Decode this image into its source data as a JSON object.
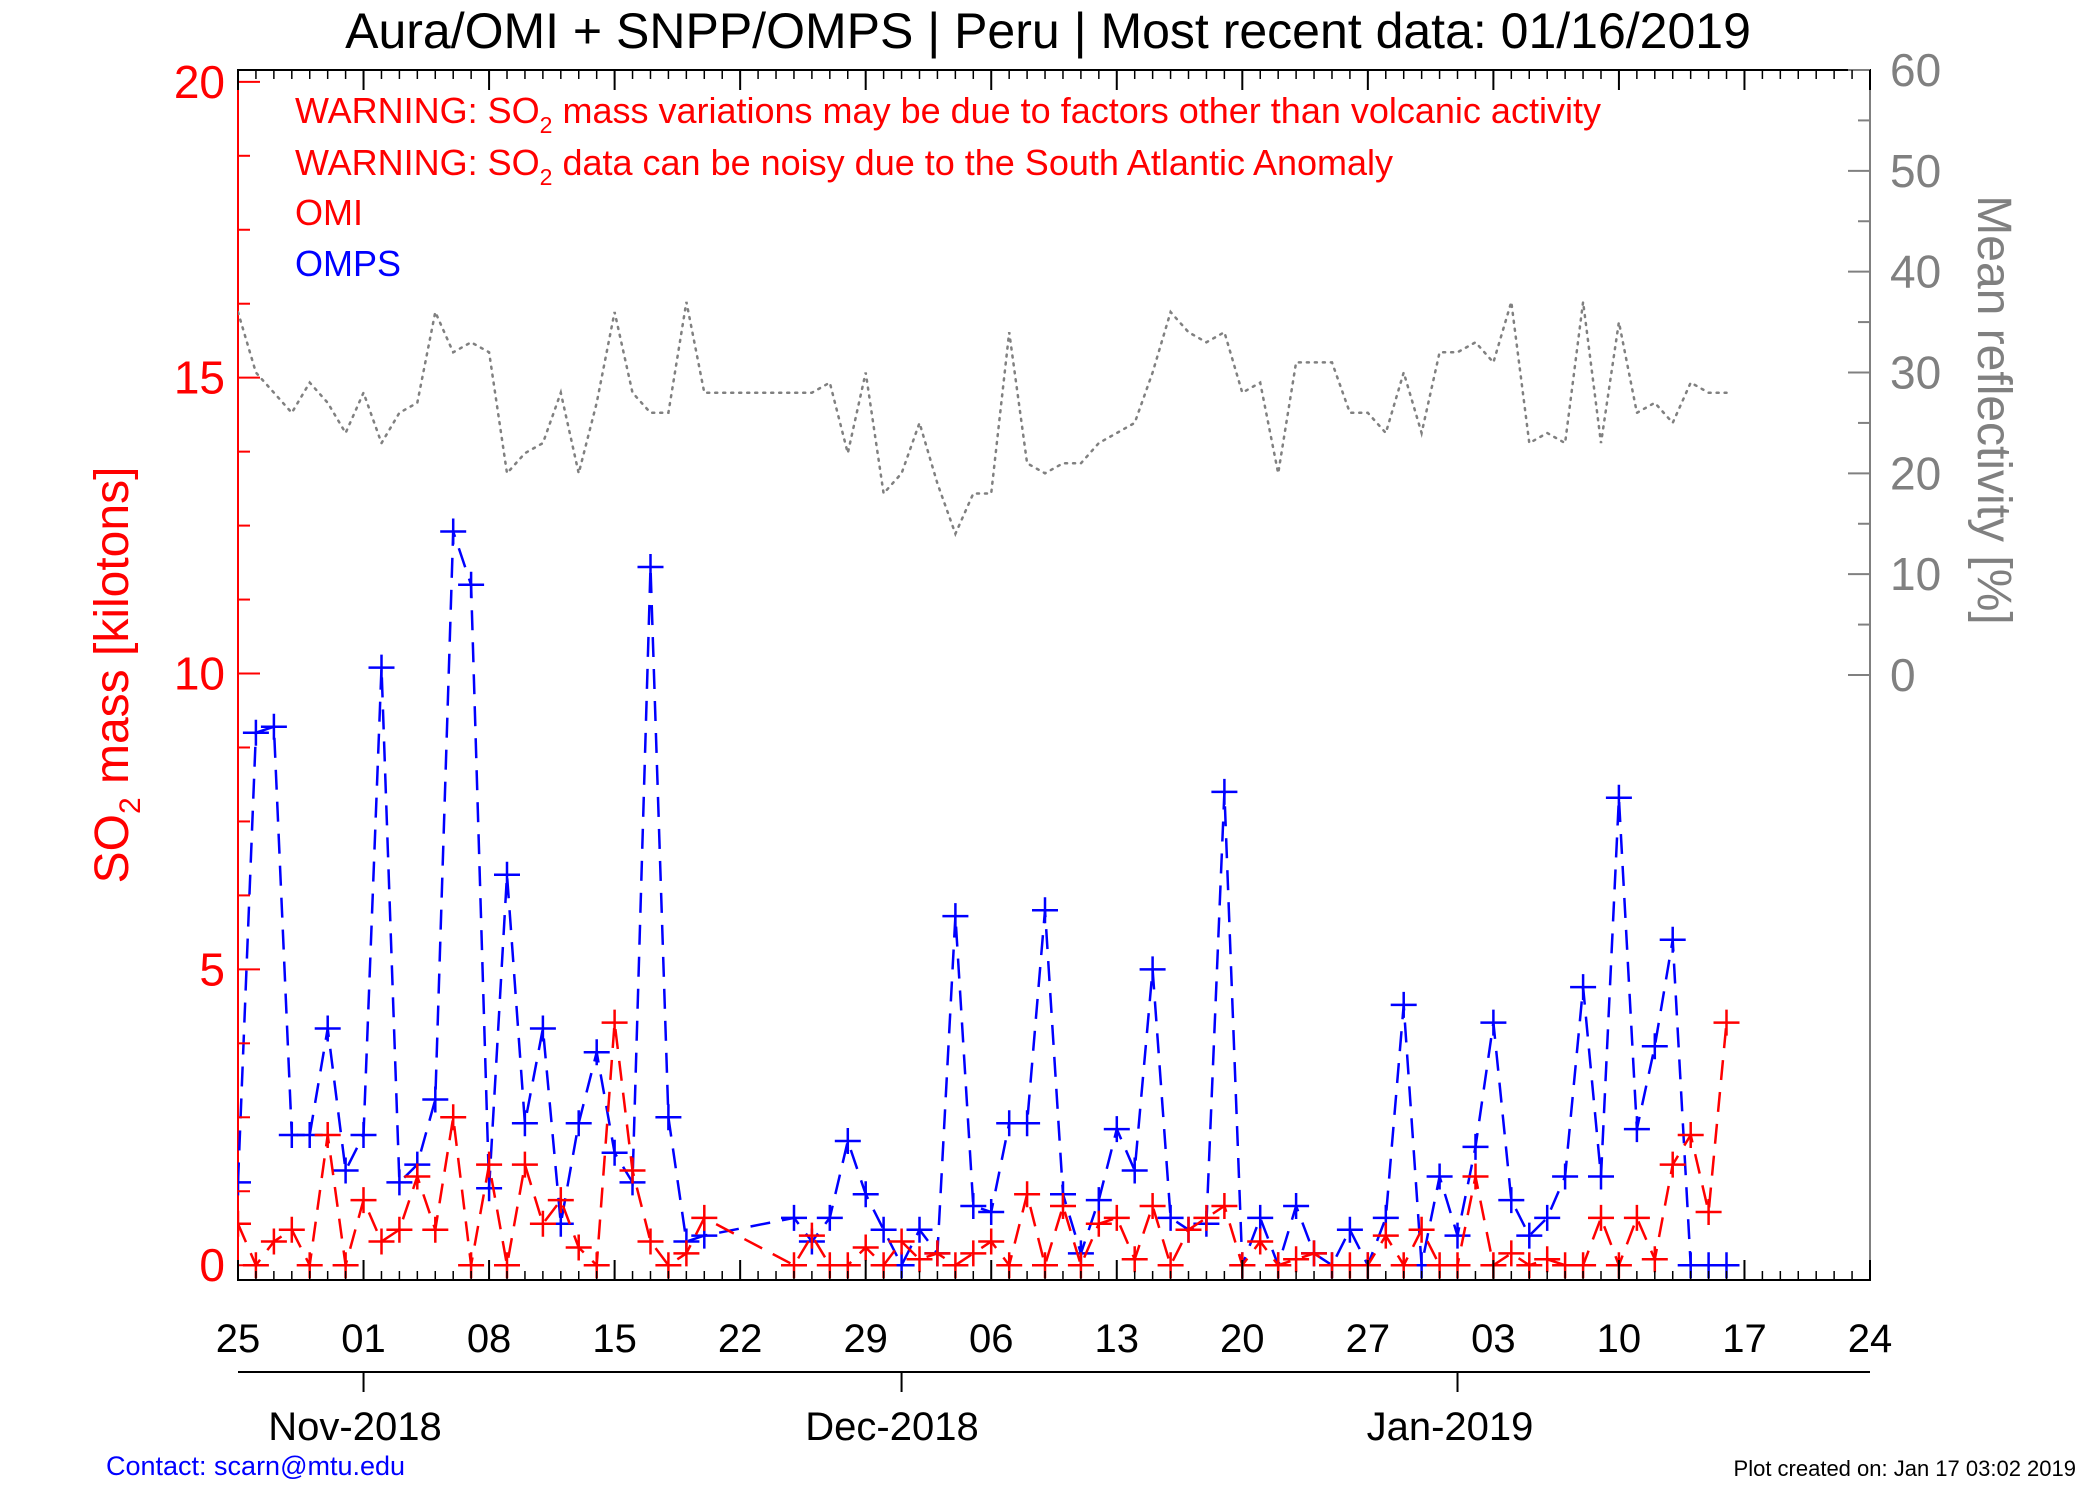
{
  "header": {
    "title": "Aura/OMI + SNPP/OMPS | Peru | Most recent data: 01/16/2019"
  },
  "warnings": [
    {
      "pre": "WARNING: SO",
      "sub": "2",
      "post": " mass variations may be due to factors other than volcanic activity"
    },
    {
      "pre": "WARNING: SO",
      "sub": "2",
      "post": " data can be noisy due to the South Atlantic Anomaly"
    }
  ],
  "footer": {
    "contact": "Contact: scarn@mtu.edu",
    "created": "Plot created on: Jan 17 03:02 2019"
  },
  "colors": {
    "omi": "#ff0000",
    "omps": "#0000ff",
    "reflectivity": "#808080",
    "axis": "#000000"
  },
  "chart_data": {
    "type": "line",
    "title": "Aura/OMI + SNPP/OMPS | Peru | Most recent data: 01/16/2019",
    "x_unit": "date",
    "xlim": [
      "2018-10-25",
      "2019-01-24"
    ],
    "x_ticks": [
      {
        "date": "2018-10-25",
        "label": "25"
      },
      {
        "date": "2018-11-01",
        "label": "01"
      },
      {
        "date": "2018-11-08",
        "label": "08"
      },
      {
        "date": "2018-11-15",
        "label": "15"
      },
      {
        "date": "2018-11-22",
        "label": "22"
      },
      {
        "date": "2018-11-29",
        "label": "29"
      },
      {
        "date": "2018-12-06",
        "label": "06"
      },
      {
        "date": "2018-12-13",
        "label": "13"
      },
      {
        "date": "2018-12-20",
        "label": "20"
      },
      {
        "date": "2018-12-27",
        "label": "27"
      },
      {
        "date": "2019-01-03",
        "label": "03"
      },
      {
        "date": "2019-01-10",
        "label": "10"
      },
      {
        "date": "2019-01-17",
        "label": "17"
      },
      {
        "date": "2019-01-24",
        "label": "24"
      }
    ],
    "months": [
      {
        "label": "Nov-2018",
        "start": "2018-11-01"
      },
      {
        "label": "Dec-2018",
        "start": "2018-12-01"
      },
      {
        "label": "Jan-2019",
        "start": "2019-01-01"
      }
    ],
    "y_left": {
      "label_pre": "SO",
      "label_sub": "2",
      "label_post": " mass [kilotons]",
      "lim": [
        -0.25,
        20.2
      ],
      "ticks": [
        0,
        5,
        10,
        15,
        20
      ]
    },
    "y_right": {
      "label": "Mean reflectivity [%]",
      "lim": [
        -60,
        60
      ],
      "ticks": [
        0,
        10,
        20,
        30,
        40,
        50,
        60
      ]
    },
    "series": [
      {
        "name": "OMI",
        "axis": "left",
        "style": "dashed-plus",
        "x": [
          "2018-10-25",
          "2018-10-26",
          "2018-10-27",
          "2018-10-28",
          "2018-10-29",
          "2018-10-30",
          "2018-10-31",
          "2018-11-01",
          "2018-11-02",
          "2018-11-03",
          "2018-11-04",
          "2018-11-05",
          "2018-11-06",
          "2018-11-07",
          "2018-11-08",
          "2018-11-09",
          "2018-11-10",
          "2018-11-11",
          "2018-11-12",
          "2018-11-13",
          "2018-11-14",
          "2018-11-15",
          "2018-11-16",
          "2018-11-17",
          "2018-11-18",
          "2018-11-19",
          "2018-11-20",
          "2018-11-25",
          "2018-11-26",
          "2018-11-27",
          "2018-11-28",
          "2018-11-29",
          "2018-11-30",
          "2018-12-01",
          "2018-12-02",
          "2018-12-03",
          "2018-12-04",
          "2018-12-05",
          "2018-12-06",
          "2018-12-07",
          "2018-12-08",
          "2018-12-09",
          "2018-12-10",
          "2018-12-11",
          "2018-12-12",
          "2018-12-13",
          "2018-12-14",
          "2018-12-15",
          "2018-12-16",
          "2018-12-17",
          "2018-12-18",
          "2018-12-19",
          "2018-12-20",
          "2018-12-21",
          "2018-12-22",
          "2018-12-23",
          "2018-12-24",
          "2018-12-25",
          "2018-12-26",
          "2018-12-27",
          "2018-12-28",
          "2018-12-29",
          "2018-12-30",
          "2018-12-31",
          "2019-01-01",
          "2019-01-02",
          "2019-01-03",
          "2019-01-04",
          "2019-01-05",
          "2019-01-06",
          "2019-01-07",
          "2019-01-08",
          "2019-01-09",
          "2019-01-10",
          "2019-01-11",
          "2019-01-12",
          "2019-01-13",
          "2019-01-14",
          "2019-01-15",
          "2019-01-16"
        ],
        "values": [
          0.7,
          0.0,
          0.4,
          0.6,
          0.0,
          2.2,
          0.0,
          1.1,
          0.4,
          0.6,
          1.5,
          0.6,
          2.5,
          0.0,
          1.7,
          0.0,
          1.7,
          0.7,
          1.1,
          0.3,
          0.0,
          4.1,
          1.6,
          0.4,
          0.0,
          0.2,
          0.8,
          0.0,
          0.5,
          0.0,
          0.0,
          0.3,
          0.0,
          0.4,
          0.1,
          0.2,
          0.0,
          0.2,
          0.4,
          0.0,
          1.2,
          0.0,
          1.0,
          0.0,
          0.7,
          0.8,
          0.1,
          1.0,
          0.0,
          0.6,
          0.8,
          1.0,
          0.0,
          0.4,
          0.0,
          0.1,
          0.2,
          0.0,
          0.0,
          0.0,
          0.5,
          0.0,
          0.6,
          0.0,
          0.0,
          1.5,
          0.0,
          0.2,
          0.0,
          0.1,
          0.0,
          0.0,
          0.8,
          0.0,
          0.8,
          0.1,
          1.7,
          2.2,
          0.9,
          4.1
        ]
      },
      {
        "name": "OMPS",
        "axis": "left",
        "style": "dashed-plus",
        "x": [
          "2018-10-25",
          "2018-10-26",
          "2018-10-27",
          "2018-10-28",
          "2018-10-29",
          "2018-10-30",
          "2018-10-31",
          "2018-11-01",
          "2018-11-02",
          "2018-11-03",
          "2018-11-04",
          "2018-11-05",
          "2018-11-06",
          "2018-11-07",
          "2018-11-08",
          "2018-11-09",
          "2018-11-10",
          "2018-11-11",
          "2018-11-12",
          "2018-11-13",
          "2018-11-14",
          "2018-11-15",
          "2018-11-16",
          "2018-11-17",
          "2018-11-18",
          "2018-11-19",
          "2018-11-20",
          "2018-11-25",
          "2018-11-26",
          "2018-11-27",
          "2018-11-28",
          "2018-11-29",
          "2018-11-30",
          "2018-12-01",
          "2018-12-02",
          "2018-12-03",
          "2018-12-04",
          "2018-12-05",
          "2018-12-06",
          "2018-12-07",
          "2018-12-08",
          "2018-12-09",
          "2018-12-10",
          "2018-12-11",
          "2018-12-12",
          "2018-12-13",
          "2018-12-14",
          "2018-12-15",
          "2018-12-16",
          "2018-12-17",
          "2018-12-18",
          "2018-12-19",
          "2018-12-20",
          "2018-12-21",
          "2018-12-22",
          "2018-12-23",
          "2018-12-24",
          "2018-12-25",
          "2018-12-26",
          "2018-12-27",
          "2018-12-28",
          "2018-12-29",
          "2018-12-30",
          "2018-12-31",
          "2019-01-01",
          "2019-01-02",
          "2019-01-03",
          "2019-01-04",
          "2019-01-05",
          "2019-01-06",
          "2019-01-07",
          "2019-01-08",
          "2019-01-09",
          "2019-01-10",
          "2019-01-11",
          "2019-01-12",
          "2019-01-13",
          "2019-01-14",
          "2019-01-15",
          "2019-01-16"
        ],
        "values": [
          1.4,
          9.0,
          9.1,
          2.2,
          2.2,
          4.0,
          1.6,
          2.2,
          10.1,
          1.4,
          1.7,
          2.8,
          12.4,
          11.5,
          1.3,
          6.6,
          2.4,
          4.0,
          0.7,
          2.4,
          3.6,
          1.9,
          1.4,
          11.8,
          2.5,
          0.4,
          0.5,
          0.8,
          0.4,
          0.8,
          2.1,
          1.2,
          0.6,
          0.0,
          0.6,
          0.2,
          5.9,
          1.0,
          0.9,
          2.4,
          2.4,
          6.0,
          1.2,
          0.2,
          1.1,
          2.3,
          1.6,
          5.0,
          0.8,
          0.6,
          0.7,
          8.0,
          0.0,
          0.8,
          0.0,
          1.0,
          0.2,
          0.0,
          0.6,
          0.0,
          0.8,
          4.4,
          0.0,
          1.5,
          0.5,
          2.0,
          4.1,
          1.1,
          0.5,
          0.8,
          1.5,
          4.7,
          1.5,
          7.9,
          2.3,
          3.7,
          5.5,
          0.0,
          0.0,
          0.0
        ]
      },
      {
        "name": "Mean reflectivity",
        "axis": "right",
        "style": "dotted",
        "x": [
          "2018-10-25",
          "2018-10-26",
          "2018-10-27",
          "2018-10-28",
          "2018-10-29",
          "2018-10-30",
          "2018-10-31",
          "2018-11-01",
          "2018-11-02",
          "2018-11-03",
          "2018-11-04",
          "2018-11-05",
          "2018-11-06",
          "2018-11-07",
          "2018-11-08",
          "2018-11-09",
          "2018-11-10",
          "2018-11-11",
          "2018-11-12",
          "2018-11-13",
          "2018-11-14",
          "2018-11-15",
          "2018-11-16",
          "2018-11-17",
          "2018-11-18",
          "2018-11-19",
          "2018-11-20",
          "2018-11-25",
          "2018-11-26",
          "2018-11-27",
          "2018-11-28",
          "2018-11-29",
          "2018-11-30",
          "2018-12-01",
          "2018-12-02",
          "2018-12-03",
          "2018-12-04",
          "2018-12-05",
          "2018-12-06",
          "2018-12-07",
          "2018-12-08",
          "2018-12-09",
          "2018-12-10",
          "2018-12-11",
          "2018-12-12",
          "2018-12-13",
          "2018-12-14",
          "2018-12-15",
          "2018-12-16",
          "2018-12-17",
          "2018-12-18",
          "2018-12-19",
          "2018-12-20",
          "2018-12-21",
          "2018-12-22",
          "2018-12-23",
          "2018-12-24",
          "2018-12-25",
          "2018-12-26",
          "2018-12-27",
          "2018-12-28",
          "2018-12-29",
          "2018-12-30",
          "2018-12-31",
          "2019-01-01",
          "2019-01-02",
          "2019-01-03",
          "2019-01-04",
          "2019-01-05",
          "2019-01-06",
          "2019-01-07",
          "2019-01-08",
          "2019-01-09",
          "2019-01-10",
          "2019-01-11",
          "2019-01-12",
          "2019-01-13",
          "2019-01-14",
          "2019-01-15",
          "2019-01-16"
        ],
        "values": [
          36,
          30,
          28,
          26,
          29,
          27,
          24,
          28,
          23,
          26,
          27,
          36,
          32,
          33,
          32,
          20,
          22,
          23,
          28,
          20,
          27,
          36,
          28,
          26,
          26,
          37,
          28,
          28,
          28,
          29,
          22,
          30,
          18,
          20,
          25,
          19,
          14,
          18,
          18,
          34,
          21,
          20,
          21,
          21,
          23,
          24,
          25,
          30,
          36,
          34,
          33,
          34,
          28,
          29,
          20,
          31,
          31,
          31,
          26,
          26,
          24,
          30,
          24,
          32,
          32,
          33,
          31,
          37,
          23,
          24,
          23,
          37,
          23,
          35,
          26,
          27,
          25,
          29,
          28,
          28
        ]
      }
    ],
    "legend": [
      {
        "label": "OMI",
        "color": "#ff0000"
      },
      {
        "label": "OMPS",
        "color": "#0000ff"
      }
    ],
    "legend_position": "top-left",
    "grid": false
  }
}
